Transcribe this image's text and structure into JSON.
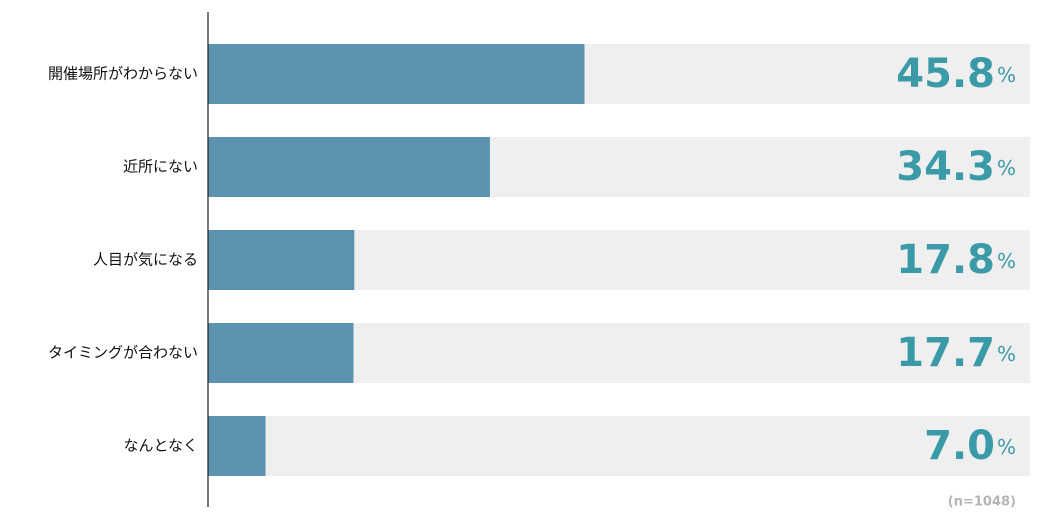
{
  "chart_data": {
    "type": "bar",
    "orientation": "horizontal",
    "categories": [
      "開催場所がわからない",
      "近所にない",
      "人目が気になる",
      "タイミングが合わない",
      "なんとなく"
    ],
    "values": [
      45.8,
      34.3,
      17.8,
      17.7,
      7.0
    ],
    "value_labels": [
      "45.8%",
      "34.3%",
      "17.8%",
      "17.7%",
      "7.0%"
    ],
    "color": "#5b93b1",
    "track_color": "#efefef",
    "label_color": "#3a9aa8",
    "xlim": [
      0,
      100
    ],
    "note": "(n=1048)"
  }
}
